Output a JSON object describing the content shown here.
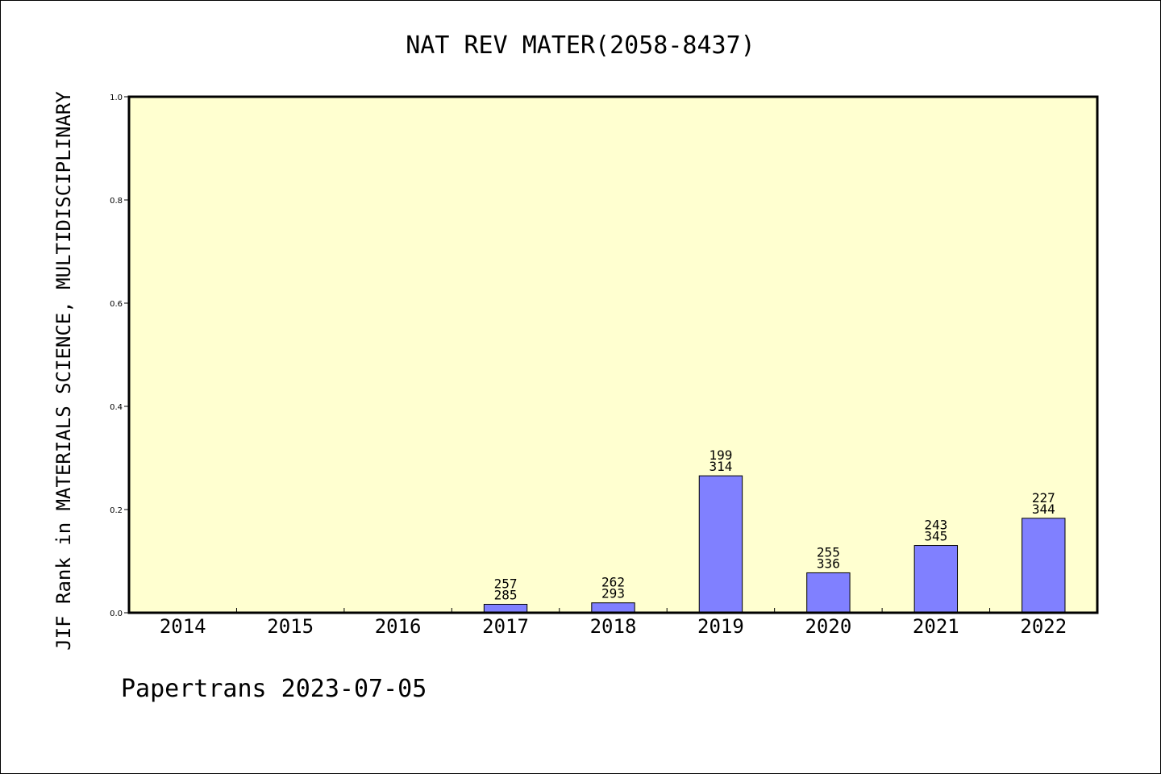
{
  "chart_data": {
    "type": "bar",
    "title": "NAT REV MATER(2058-8437)",
    "ylabel": "JIF Rank in MATERIALS SCIENCE, MULTIDISCIPLINARY",
    "xlabel": "",
    "ylim": [
      0,
      1.0
    ],
    "yticks": [
      "0.0",
      "0.2",
      "0.4",
      "0.6",
      "0.8",
      "1.0"
    ],
    "categories": [
      "2014",
      "2015",
      "2016",
      "2017",
      "2018",
      "2019",
      "2020",
      "2021",
      "2022"
    ],
    "values": [
      null,
      null,
      null,
      0.0164,
      0.0192,
      0.2654,
      0.0774,
      0.1304,
      0.1831
    ],
    "ranks": [
      null,
      null,
      null,
      "257",
      "262",
      "199",
      "255",
      "243",
      "227"
    ],
    "totals": [
      null,
      null,
      null,
      "285",
      "293",
      "314",
      "336",
      "345",
      "344"
    ],
    "bar_color": "#8080ff",
    "plot_background": "#ffffd0",
    "grid": false
  },
  "footer": {
    "text": "Papertrans 2023-07-05"
  }
}
